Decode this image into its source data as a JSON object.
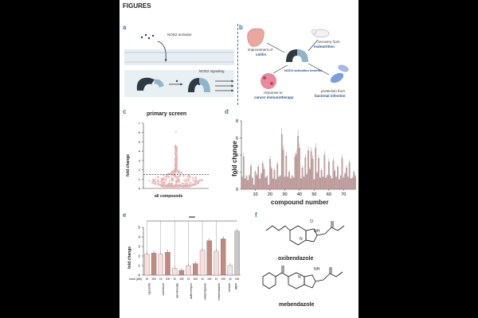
{
  "header": "FIGURES",
  "panels": {
    "a": "a",
    "b": "b",
    "c": "c",
    "d": "d",
    "e": "e",
    "f": "f"
  },
  "panel_a": {
    "activator": "NOD2 activator",
    "signaling": "NOD2 signaling"
  },
  "panel_b": {
    "center": "NOD2 activation benefits",
    "items": [
      {
        "pre": "improvement of",
        "key": "colitis"
      },
      {
        "pre": "recovery from",
        "key": "malnutrition"
      },
      {
        "pre": "response to",
        "key": "cancer immunotherapy"
      },
      {
        "pre": "protection from",
        "key": "bacterial infection"
      }
    ]
  },
  "panel_c": {
    "title": "primary screen",
    "ylabel": "fold change",
    "xlabel": "all compounds",
    "yticks": [
      "0",
      "1",
      "2",
      "3",
      "4",
      "5",
      "6",
      "7"
    ]
  },
  "panel_d": {
    "ylabel": "fold change",
    "xlabel": "compound number",
    "yticks": [
      "0",
      "2",
      "4",
      "6",
      "8"
    ],
    "xticks": [
      "10",
      "20",
      "30",
      "40",
      "50",
      "60",
      "70"
    ]
  },
  "panel_e": {
    "ylabel": "fold change",
    "signif": "****",
    "conc_label": "conc (µM)",
    "conc": [
      "10",
      "100",
      "10",
      "100",
      "10",
      "100",
      "10",
      "100",
      "10",
      "100",
      "10",
      "100",
      "10",
      "100"
    ],
    "compounds": [
      "rigosertib",
      "colchicine",
      "alendronate",
      "azithromycin",
      "oxibendazole",
      "mebendazole"
    ],
    "controls": [
      "vehicle",
      "MDP"
    ],
    "yticks": [
      "0",
      "1",
      "2",
      "3",
      "4",
      "5"
    ]
  },
  "panel_f": {
    "mol1": "oxibendazole",
    "mol2": "mebendazole",
    "nh": "NH",
    "n": "N",
    "h": "H",
    "o": "O"
  },
  "chart_data": [
    {
      "type": "scatter",
      "title": "primary screen",
      "xlabel": "all compounds",
      "ylabel": "fold change",
      "ylim": [
        0,
        7
      ],
      "threshold": 1.5
    },
    {
      "type": "bar",
      "xlabel": "compound number",
      "ylabel": "fold change",
      "ylim": [
        0,
        8
      ],
      "x": [
        1,
        2,
        3,
        4,
        5,
        6,
        7,
        8,
        9,
        10,
        11,
        12,
        13,
        14,
        15,
        16,
        17,
        18,
        19,
        20,
        21,
        22,
        23,
        24,
        25,
        26,
        27,
        28,
        29,
        30,
        31,
        32,
        33,
        34,
        35,
        36,
        37,
        38,
        39,
        40,
        41,
        42,
        43,
        44,
        45,
        46,
        47,
        48,
        49,
        50,
        51,
        52,
        53,
        54,
        55,
        56,
        57,
        58,
        59,
        60,
        61,
        62,
        63,
        64,
        65,
        66,
        67,
        68,
        69,
        70,
        71,
        72,
        73,
        74,
        75,
        76,
        77,
        78
      ],
      "values": [
        1.4,
        3.8,
        1.2,
        1.5,
        1.0,
        1.6,
        2.7,
        1.3,
        0.5,
        2.0,
        1.6,
        2.6,
        1.2,
        1.8,
        3.0,
        2.3,
        1.3,
        1.5,
        0.5,
        3.5,
        2.4,
        1.2,
        2.2,
        1.1,
        2.9,
        1.4,
        1.5,
        6.4,
        4.6,
        1.4,
        3.9,
        1.4,
        2.0,
        1.2,
        1.5,
        1.3,
        3.8,
        4.1,
        6.2,
        4.8,
        1.2,
        2.5,
        1.4,
        3.7,
        1.7,
        4.5,
        2.3,
        4.4,
        3.5,
        1.1,
        4.8,
        1.9,
        3.6,
        1.3,
        2.2,
        1.4,
        4.0,
        1.3,
        1.6,
        3.2,
        1.5,
        1.2,
        3.3,
        2.1,
        1.4,
        2.6,
        1.1,
        1.5,
        3.6,
        1.3,
        1.8,
        2.5,
        1.4,
        3.1,
        1.2,
        1.3,
        2.0,
        1.5
      ]
    },
    {
      "type": "bar",
      "ylabel": "fold change",
      "ylim": [
        0,
        5
      ],
      "categories": [
        "rigosertib 10",
        "rigosertib 100",
        "colchicine 10",
        "colchicine 100",
        "alendronate 10",
        "alendronate 100",
        "azithromycin 10",
        "azithromycin 100",
        "oxibendazole 10",
        "oxibendazole 100",
        "mebendazole 10",
        "mebendazole 100",
        "vehicle",
        "MDP"
      ],
      "values": [
        2.2,
        2.3,
        2.2,
        2.4,
        0.7,
        0.5,
        1.0,
        1.2,
        2.6,
        3.6,
        2.5,
        3.8,
        1.0,
        4.6
      ]
    }
  ]
}
